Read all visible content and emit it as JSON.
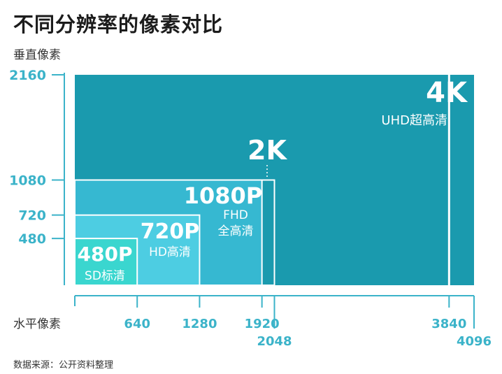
{
  "title": "不同分辨率的像素对比",
  "source": "数据来源：公开资料整理",
  "colors": {
    "tick_color": "#3bb3c9",
    "rect_4k": "#1a9aae",
    "rect_2k": "#1a9aae",
    "rect_1080": "#36b8d1",
    "rect_720": "#4dcde2",
    "rect_480": "#3ad6cf",
    "outline": "#ffffff",
    "label": "#ffffff",
    "axis_text": "#333333"
  },
  "chart_data": {
    "type": "nested-rectangles",
    "title": "不同分辨率的像素对比",
    "xlabel": "水平像素",
    "ylabel": "垂直像素",
    "xlim": [
      0,
      4096
    ],
    "ylim": [
      0,
      2160
    ],
    "x_ticks": [
      640,
      1280,
      1920,
      2048,
      3840,
      4096
    ],
    "y_ticks": [
      480,
      720,
      1080,
      2160
    ],
    "resolutions": [
      {
        "name": "4K",
        "sub": "UHD超高清",
        "width": 3840,
        "height": 2160,
        "outer_width": 4096
      },
      {
        "name": "2K",
        "sub": "",
        "width": 2048,
        "height": 1080
      },
      {
        "name": "1080P",
        "sub": "FHD\n全高清",
        "width": 1920,
        "height": 1080
      },
      {
        "name": "720P",
        "sub": "HD高清",
        "width": 1280,
        "height": 720
      },
      {
        "name": "480P",
        "sub": "SD标清",
        "width": 640,
        "height": 480
      }
    ]
  }
}
